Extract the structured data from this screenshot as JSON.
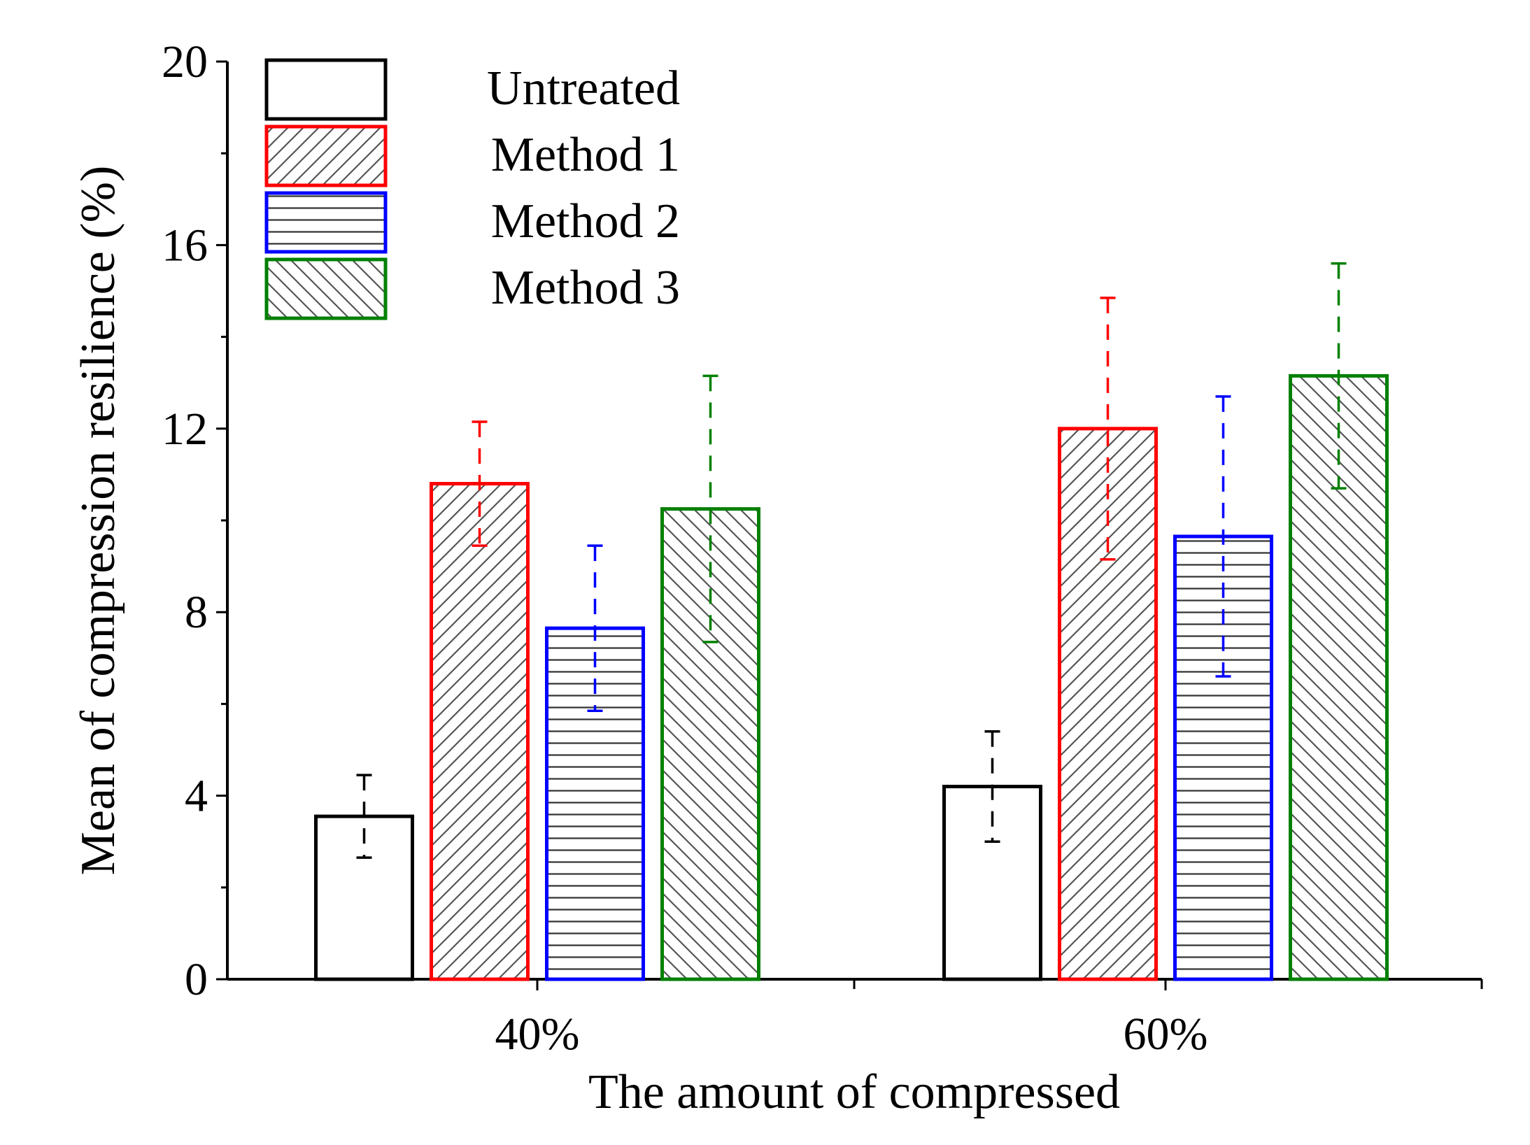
{
  "chart_data": {
    "type": "bar",
    "title": "",
    "xlabel": "The amount of compressed",
    "ylabel": "Mean of compression resilience (%)",
    "categories": [
      "40%",
      "60%"
    ],
    "ylim": [
      0,
      20
    ],
    "yticks": [
      0,
      4,
      8,
      12,
      16,
      20
    ],
    "ytick_labels": [
      "0",
      "4",
      "8",
      "12",
      "16",
      "20"
    ],
    "grid": false,
    "legend_position": "top-left",
    "series": [
      {
        "name": "Untreated",
        "color": "#000000",
        "pattern": "none",
        "errorbar_style": "dashed",
        "values": [
          3.55,
          4.2
        ],
        "errors": [
          0.9,
          1.2
        ]
      },
      {
        "name": "Method 1",
        "color": "#ff0000",
        "pattern": "forward-diagonal",
        "errorbar_style": "dashed",
        "values": [
          10.8,
          12.0
        ],
        "errors": [
          1.35,
          2.85
        ]
      },
      {
        "name": "Method 2",
        "color": "#0000ff",
        "pattern": "horizontal",
        "errorbar_style": "dashed",
        "values": [
          7.65,
          9.65
        ],
        "errors": [
          1.8,
          3.05
        ]
      },
      {
        "name": "Method 3",
        "color": "#008000",
        "pattern": "back-diagonal",
        "errorbar_style": "dashed",
        "values": [
          10.25,
          13.15
        ],
        "errors": [
          2.9,
          2.45
        ]
      }
    ]
  }
}
